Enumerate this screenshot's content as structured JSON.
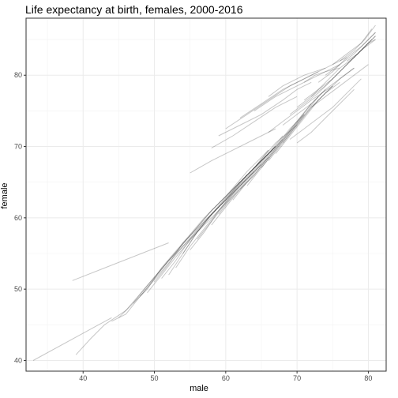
{
  "chart_data": {
    "type": "line",
    "title": "Life expectancy at birth, females, 2000-2016",
    "xlabel": "male",
    "ylabel": "female",
    "xlim": [
      32,
      82.5
    ],
    "ylim": [
      38.5,
      88
    ],
    "x_ticks": [
      40,
      50,
      60,
      70,
      80
    ],
    "y_ticks": [
      40,
      50,
      60,
      70,
      80
    ],
    "grid": true,
    "legend": "none",
    "line_color": "#000000",
    "series": [
      {
        "x": [
          33,
          44
        ],
        "y": [
          40,
          46
        ]
      },
      {
        "x": [
          38.5,
          52
        ],
        "y": [
          51.2,
          56.5
        ]
      },
      {
        "x": [
          39,
          41,
          43,
          46,
          49,
          52,
          55,
          58,
          61,
          64
        ],
        "y": [
          40.8,
          43,
          45,
          47,
          50.5,
          54,
          57,
          60,
          63,
          66
        ]
      },
      {
        "x": [
          44,
          46,
          48,
          51,
          54,
          57,
          60,
          63,
          66
        ],
        "y": [
          45.5,
          46.5,
          49,
          52.5,
          56,
          59.5,
          62.5,
          65.5,
          68.5
        ]
      },
      {
        "x": [
          45,
          47,
          49,
          52,
          55,
          58,
          61,
          64,
          67
        ],
        "y": [
          46,
          48,
          50.5,
          54,
          57.5,
          61,
          64,
          67,
          70
        ]
      },
      {
        "x": [
          47,
          49,
          51,
          54,
          57,
          60,
          63,
          66
        ],
        "y": [
          48,
          50,
          53,
          56.5,
          59.5,
          62.5,
          66,
          69
        ]
      },
      {
        "x": [
          48,
          50,
          52,
          55,
          58,
          61,
          64,
          67,
          70
        ],
        "y": [
          49,
          51.5,
          54,
          57.5,
          61,
          64,
          67,
          70.5,
          73
        ]
      },
      {
        "x": [
          49,
          51,
          53,
          56,
          59,
          62,
          65,
          68
        ],
        "y": [
          49.5,
          52,
          54.5,
          58,
          61.5,
          65,
          68,
          71
        ]
      },
      {
        "x": [
          50,
          52,
          54,
          57,
          60,
          63,
          66
        ],
        "y": [
          51,
          53.5,
          56.5,
          60,
          63,
          66.5,
          69.5
        ]
      },
      {
        "x": [
          51,
          53,
          55,
          58,
          61,
          64,
          67
        ],
        "y": [
          51.5,
          54,
          57,
          60.5,
          64,
          67,
          70
        ]
      },
      {
        "x": [
          52,
          54,
          56,
          58,
          61,
          64
        ],
        "y": [
          52,
          55,
          58,
          60.5,
          63.5,
          66.5
        ]
      },
      {
        "x": [
          53,
          55,
          57,
          59,
          62,
          65
        ],
        "y": [
          53,
          56,
          58.5,
          61,
          64.5,
          67.5
        ]
      },
      {
        "x": [
          54,
          56,
          58,
          60,
          62
        ],
        "y": [
          55,
          58,
          60.5,
          62.5,
          65
        ]
      },
      {
        "x": [
          55,
          57,
          59,
          61,
          63
        ],
        "y": [
          55.5,
          58,
          61,
          63.5,
          66
        ]
      },
      {
        "x": [
          56,
          58,
          60,
          62,
          64,
          66
        ],
        "y": [
          57,
          59.5,
          62,
          64.5,
          67,
          69.5
        ]
      },
      {
        "x": [
          58,
          60,
          62,
          64,
          66,
          68
        ],
        "y": [
          59,
          61.5,
          64,
          66.5,
          69,
          71.5
        ]
      },
      {
        "x": [
          59,
          61,
          63,
          65,
          67
        ],
        "y": [
          60.5,
          63,
          65.5,
          68,
          70
        ]
      },
      {
        "x": [
          61,
          63,
          65,
          67,
          69,
          71
        ],
        "y": [
          62.5,
          65,
          67.5,
          70,
          72.5,
          74.5
        ]
      },
      {
        "x": [
          62,
          64,
          66,
          68,
          70,
          72
        ],
        "y": [
          64,
          66,
          68.5,
          71,
          73.5,
          76
        ]
      },
      {
        "x": [
          63,
          65,
          67,
          69,
          71
        ],
        "y": [
          64.5,
          67,
          69.5,
          72,
          74.5
        ]
      },
      {
        "x": [
          64,
          66,
          68,
          70,
          72,
          74
        ],
        "y": [
          66,
          68.5,
          71,
          73.5,
          76,
          78
        ]
      },
      {
        "x": [
          65,
          67,
          69,
          71,
          73
        ],
        "y": [
          67,
          69.5,
          72,
          74.5,
          77
        ]
      },
      {
        "x": [
          66,
          68,
          70,
          72,
          74,
          76
        ],
        "y": [
          68,
          70.5,
          73,
          75.5,
          77.5,
          79
        ]
      },
      {
        "x": [
          67,
          69,
          71,
          73,
          75
        ],
        "y": [
          69,
          71.5,
          74,
          76.5,
          78.5
        ]
      },
      {
        "x": [
          68,
          70,
          72,
          74,
          76,
          78
        ],
        "y": [
          70.5,
          73,
          75.5,
          77.5,
          79.5,
          81
        ]
      },
      {
        "x": [
          55,
          58,
          61,
          64,
          67
        ],
        "y": [
          66.3,
          68,
          69.5,
          71,
          72.5
        ]
      },
      {
        "x": [
          58,
          61,
          64,
          67,
          70
        ],
        "y": [
          69.8,
          71.5,
          73.5,
          75.5,
          77
        ]
      },
      {
        "x": [
          59,
          62,
          65,
          68,
          70,
          72
        ],
        "y": [
          71.5,
          73,
          74.5,
          76.5,
          78,
          79
        ]
      },
      {
        "x": [
          60,
          63,
          66,
          69,
          71,
          73
        ],
        "y": [
          72.5,
          74.5,
          76.5,
          78.5,
          79.5,
          80.5
        ]
      },
      {
        "x": [
          62,
          65,
          68,
          71,
          74
        ],
        "y": [
          74,
          76,
          78,
          79.5,
          81
        ]
      },
      {
        "x": [
          64,
          67,
          70,
          73,
          76
        ],
        "y": [
          75,
          77,
          78.5,
          80,
          81.5
        ]
      },
      {
        "x": [
          66,
          68,
          71,
          74,
          77
        ],
        "y": [
          77,
          78.5,
          80,
          81,
          82.5
        ]
      },
      {
        "x": [
          66,
          68,
          70,
          72,
          75
        ],
        "y": [
          72,
          73.5,
          75,
          76.5,
          78.5
        ]
      },
      {
        "x": [
          68,
          70,
          72,
          74,
          76,
          78
        ],
        "y": [
          73,
          74.5,
          76,
          78,
          79.5,
          81
        ]
      },
      {
        "x": [
          69,
          71,
          73,
          75,
          77,
          79,
          81
        ],
        "y": [
          74.5,
          76,
          77.5,
          79.5,
          81.5,
          83.5,
          85
        ]
      },
      {
        "x": [
          70,
          72,
          74,
          76,
          78,
          80,
          81
        ],
        "y": [
          75.5,
          77,
          78.5,
          80.5,
          82.5,
          84.5,
          85.5
        ]
      },
      {
        "x": [
          71,
          73,
          75,
          77,
          79,
          80.5
        ],
        "y": [
          76.5,
          78,
          79.5,
          81.5,
          83.5,
          85
        ]
      },
      {
        "x": [
          72,
          74,
          76,
          78,
          80,
          81
        ],
        "y": [
          77,
          79,
          81,
          82.5,
          84.5,
          85.5
        ]
      },
      {
        "x": [
          73,
          75,
          77,
          79,
          81
        ],
        "y": [
          79,
          80.5,
          82.5,
          84,
          86
        ]
      },
      {
        "x": [
          74,
          76,
          78,
          80,
          81
        ],
        "y": [
          80,
          81.5,
          83,
          85,
          86
        ]
      },
      {
        "x": [
          75,
          77,
          79,
          80.5
        ],
        "y": [
          81.5,
          83,
          84.5,
          86.5
        ]
      },
      {
        "x": [
          76,
          78,
          79.5,
          81
        ],
        "y": [
          82,
          83.5,
          85,
          87
        ]
      },
      {
        "x": [
          77,
          78.5,
          80,
          81
        ],
        "y": [
          82,
          83,
          84.5,
          85
        ]
      },
      {
        "x": [
          70,
          72,
          74,
          76,
          78
        ],
        "y": [
          70.5,
          72,
          74,
          76,
          78
        ]
      },
      {
        "x": [
          69,
          71,
          73,
          75,
          77,
          79
        ],
        "y": [
          71,
          72.5,
          74,
          75.5,
          77.5,
          79.5
        ]
      },
      {
        "x": [
          71,
          72.5,
          74,
          76
        ],
        "y": [
          79,
          80,
          80.5,
          81
        ]
      },
      {
        "x": [
          72,
          74,
          76,
          78,
          80
        ],
        "y": [
          75.5,
          77,
          78.5,
          80,
          81.5
        ]
      }
    ]
  }
}
